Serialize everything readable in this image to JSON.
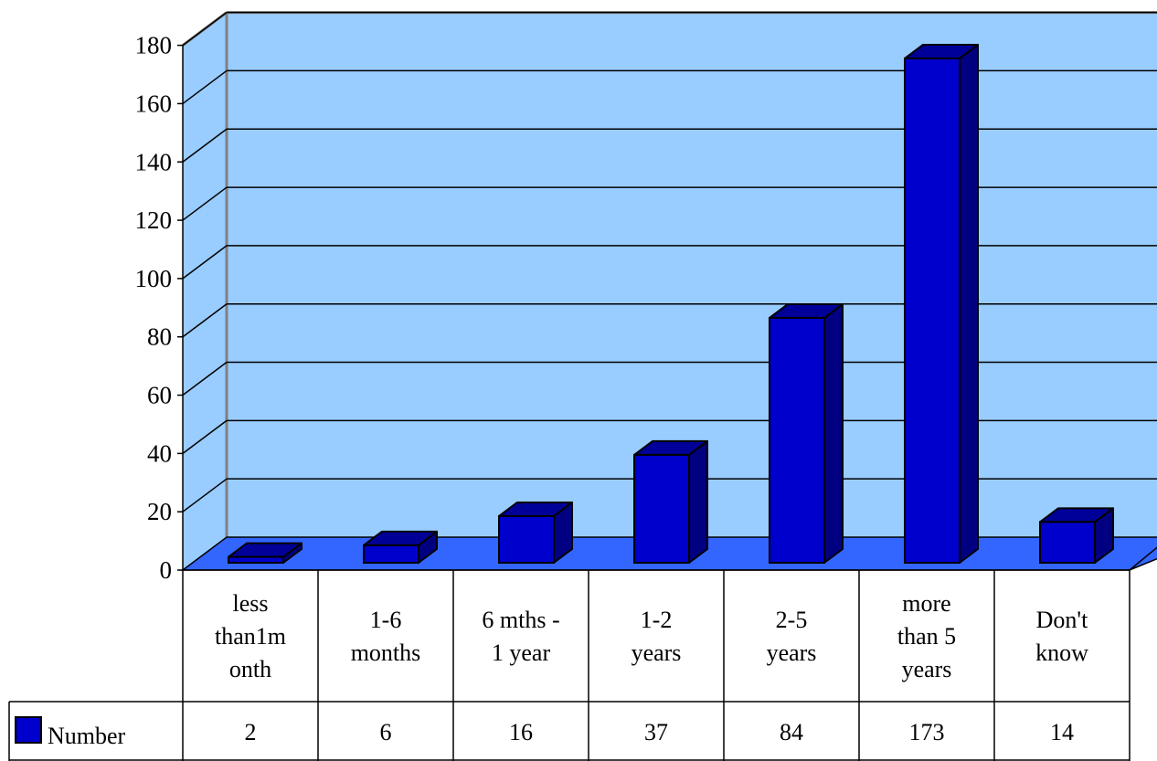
{
  "chart_data": {
    "type": "bar",
    "title": "",
    "xlabel": "",
    "ylabel": "",
    "categories": [
      [
        "less",
        "than1m",
        "onth"
      ],
      [
        "1-6",
        "months"
      ],
      [
        "6 mths -",
        "1 year"
      ],
      [
        "1-2",
        "years"
      ],
      [
        "2-5",
        "years"
      ],
      [
        "more",
        "than 5",
        "years"
      ],
      [
        "Don't",
        "know"
      ]
    ],
    "series": [
      {
        "name": "Number",
        "values": [
          2,
          6,
          16,
          37,
          84,
          173,
          14
        ]
      }
    ],
    "ylim": [
      0,
      180
    ],
    "yticks": [
      0,
      20,
      40,
      60,
      80,
      100,
      120,
      140,
      160,
      180
    ],
    "grid": true,
    "legend": "data-table",
    "three_d": true,
    "colors": {
      "wall": "#99ccff",
      "floor": "#3366ff",
      "wall_edge": "#808080",
      "bar_front": "#0000cc",
      "bar_top": "#000099",
      "bar_side": "#000080"
    }
  }
}
